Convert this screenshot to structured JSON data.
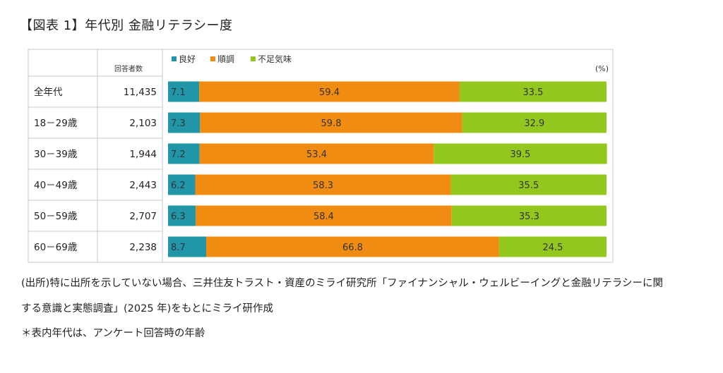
{
  "title": "【図表 1】年代別  金融リテラシー度",
  "notes": {
    "line1": "(出所)特に出所を示していない場合、三井住友トラスト・資産のミライ研究所「ファイナンシャル・ウェルビーイングと金融リテラシーに関",
    "line2": "する意識と実態調査」(2025 年)をもとにミライ研作成",
    "line3": "＊表内年代は、アンケート回答時の年齢"
  },
  "chart_data": {
    "type": "bar",
    "orientation": "horizontal",
    "stacked": true,
    "normalized": true,
    "unit_label": "(%)",
    "count_header": "回答者数",
    "categories": [
      "全年代",
      "18－29歳",
      "30－39歳",
      "40－49歳",
      "50－59歳",
      "60－69歳"
    ],
    "counts": [
      "11,435",
      "2,103",
      "1,944",
      "2,443",
      "2,707",
      "2,238"
    ],
    "series": [
      {
        "name": "良好",
        "color": "#2196a9",
        "values": [
          7.1,
          7.3,
          7.2,
          6.2,
          6.3,
          8.7
        ]
      },
      {
        "name": "順調",
        "color": "#f08c12",
        "values": [
          59.4,
          59.8,
          53.4,
          58.3,
          58.4,
          66.8
        ]
      },
      {
        "name": "不足気味",
        "color": "#92c81e",
        "values": [
          33.5,
          32.9,
          39.5,
          35.5,
          35.3,
          24.5
        ]
      }
    ],
    "legend_position": "top-left",
    "xlim": [
      0,
      100
    ]
  }
}
